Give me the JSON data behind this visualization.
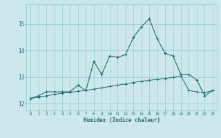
{
  "xlabel": "Humidex (Indice chaleur)",
  "background_color": "#cce8ec",
  "grid_color": "#9ecdd4",
  "line_color": "#1d6b6b",
  "xlim": [
    -0.5,
    23.5
  ],
  "ylim": [
    11.75,
    15.75
  ],
  "xticks": [
    0,
    1,
    2,
    3,
    4,
    5,
    6,
    7,
    8,
    9,
    10,
    11,
    12,
    13,
    14,
    15,
    16,
    17,
    18,
    19,
    20,
    21,
    22,
    23
  ],
  "yticks": [
    12,
    13,
    14,
    15
  ],
  "line1_x": [
    0,
    1,
    2,
    3,
    4,
    5,
    6,
    7,
    8,
    9,
    10,
    11,
    12,
    13,
    14,
    15,
    16,
    17,
    18,
    19,
    20,
    21,
    22,
    23
  ],
  "line1_y": [
    12.2,
    12.3,
    12.45,
    12.45,
    12.45,
    12.45,
    12.7,
    12.5,
    13.6,
    13.1,
    13.8,
    13.75,
    13.85,
    14.5,
    14.9,
    15.2,
    14.45,
    13.9,
    13.8,
    13.1,
    13.1,
    12.9,
    12.3,
    12.5
  ],
  "line2_x": [
    0,
    1,
    2,
    3,
    4,
    5,
    6,
    7,
    8,
    9,
    10,
    11,
    12,
    13,
    14,
    15,
    16,
    17,
    18,
    19,
    20,
    21,
    22,
    23
  ],
  "line2_y": [
    12.2,
    12.25,
    12.3,
    12.35,
    12.4,
    12.43,
    12.47,
    12.5,
    12.55,
    12.6,
    12.65,
    12.7,
    12.75,
    12.8,
    12.85,
    12.88,
    12.92,
    12.95,
    13.0,
    13.05,
    12.5,
    12.45,
    12.42,
    12.5
  ]
}
